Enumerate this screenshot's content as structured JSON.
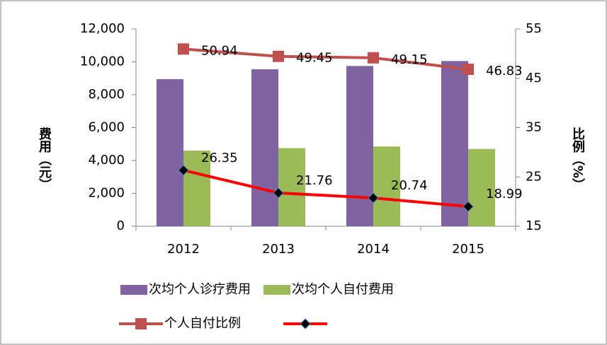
{
  "chart_data": {
    "type": "bar-line",
    "categories": [
      "2012",
      "2013",
      "2014",
      "2015"
    ],
    "series": [
      {
        "name": "次均个人诊疗费用",
        "type": "bar",
        "color": "#8064a2",
        "values": [
          8950,
          9550,
          9750,
          10050
        ]
      },
      {
        "name": "次均个人自付费用",
        "type": "bar",
        "color": "#9bbb59",
        "values": [
          4600,
          4750,
          4850,
          4700
        ]
      },
      {
        "name": "个人自付比例",
        "type": "line",
        "axis": "y2",
        "color": "#c0504d",
        "marker": "square",
        "values": [
          50.94,
          49.45,
          49.15,
          46.83
        ]
      },
      {
        "type": "line",
        "axis": "y2",
        "color": "#ff0000",
        "marker": "diamond",
        "values": [
          26.35,
          21.76,
          20.74,
          18.99
        ]
      }
    ],
    "ylabel": "费用（元）",
    "y2label": "比例（%）",
    "ylim": [
      0,
      12000
    ],
    "yticks": [
      0,
      {
        "value": 2000,
        "label": "2,000"
      },
      {
        "value": 4000,
        "label": "4,000"
      },
      {
        "value": 6000,
        "label": "6,000"
      },
      {
        "value": 8000,
        "label": "8,000"
      },
      {
        "value": 10000,
        "label": "10,000"
      },
      {
        "value": 12000,
        "label": "12,000"
      }
    ],
    "y2lim": [
      15,
      55
    ],
    "y2ticks": [
      15,
      25,
      35,
      45,
      55
    ]
  }
}
